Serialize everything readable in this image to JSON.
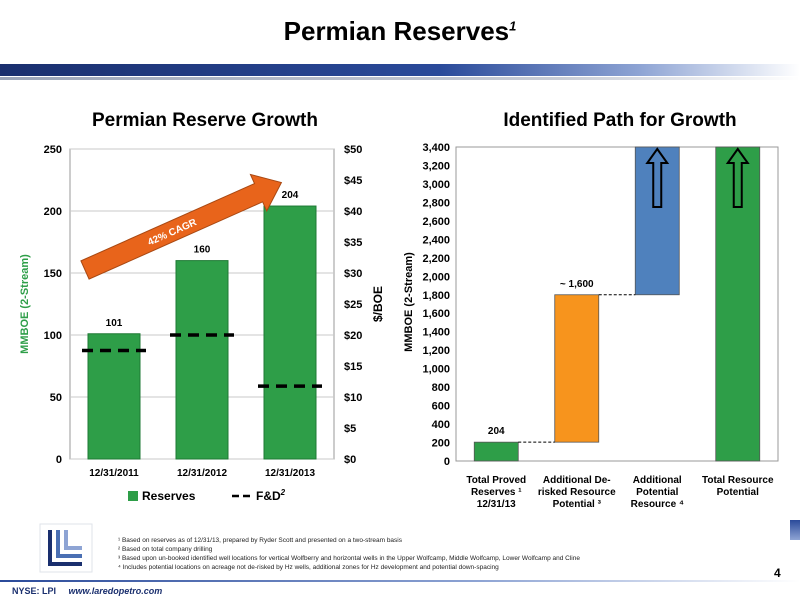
{
  "slide": {
    "title": "Permian Reserves",
    "title_sup": "1",
    "page_number": "4",
    "footer_ticker": "NYSE: LPI",
    "footer_url": "www.laredopetro.com",
    "footnotes": [
      "¹ Based on reserves as of 12/31/13, prepared by Ryder Scott and presented on a two-stream basis",
      "² Based on total company drilling",
      "³ Based upon un-booked identified well locations for vertical Wolfberry and horizontal wells in the Upper Wolfcamp, Middle Wolfcamp, Lower Wolfcamp and Cline",
      "⁴ Includes potential locations on acreage not de-risked by Hz wells, additional zones for Hz development and potential down-spacing"
    ]
  },
  "chart_data": [
    {
      "type": "bar",
      "title": "Permian Reserve Growth",
      "categories": [
        "12/31/2011",
        "12/31/2012",
        "12/31/2013"
      ],
      "series": [
        {
          "name": "Reserves",
          "values": [
            101,
            160,
            204
          ],
          "color": "#2e9e48"
        },
        {
          "name": "F&D",
          "name_sup": "2",
          "values": [
            17.5,
            20,
            11.75
          ],
          "axis": "right",
          "style": "dashed",
          "color": "#000000"
        }
      ],
      "data_labels": [
        "101",
        "160",
        "204"
      ],
      "ylabel": "MMBOE (2-Stream)",
      "ylim": [
        0,
        250
      ],
      "yticks": [
        "0",
        "50",
        "100",
        "150",
        "200",
        "250"
      ],
      "y2label": "$/BOE",
      "y2lim": [
        0,
        50
      ],
      "y2ticks": [
        "$0",
        "$5",
        "$10",
        "$15",
        "$20",
        "$25",
        "$30",
        "$35",
        "$40",
        "$45",
        "$50"
      ],
      "annotation": "42% CAGR",
      "legend_position": "bottom"
    },
    {
      "type": "bar",
      "title": "Identified Path for Growth",
      "categories": [
        "Total Proved Reserves ¹ 12/31/13",
        "Additional De-risked Resource Potential ³",
        "Additional Potential Resource ⁴",
        "Total Resource Potential"
      ],
      "category_lines": [
        [
          "Total Proved",
          "Reserves ¹",
          "12/31/13"
        ],
        [
          "Additional De-",
          "risked Resource",
          "Potential ³"
        ],
        [
          "Additional",
          "Potential",
          "Resource ⁴"
        ],
        [
          "Total Resource",
          "Potential"
        ]
      ],
      "floating_bars": [
        {
          "base": 0,
          "top": 204,
          "color": "#2e9e48",
          "label": "204"
        },
        {
          "base": 204,
          "top": 1800,
          "color": "#f7941d",
          "label": "~ 1,600"
        },
        {
          "base": 1800,
          "top": 3400,
          "color": "#4f81bd",
          "arrow": true
        },
        {
          "base": 0,
          "top": 3400,
          "color": "#2e9e48",
          "arrow": true
        }
      ],
      "ylabel": "MMBOE (2-Stream)",
      "ylim": [
        0,
        3400
      ],
      "yticks": [
        "0",
        "200",
        "400",
        "600",
        "800",
        "1,000",
        "1,200",
        "1,400",
        "1,600",
        "1,800",
        "2,000",
        "2,200",
        "2,400",
        "2,600",
        "2,800",
        "3,000",
        "3,200",
        "3,400"
      ]
    }
  ]
}
